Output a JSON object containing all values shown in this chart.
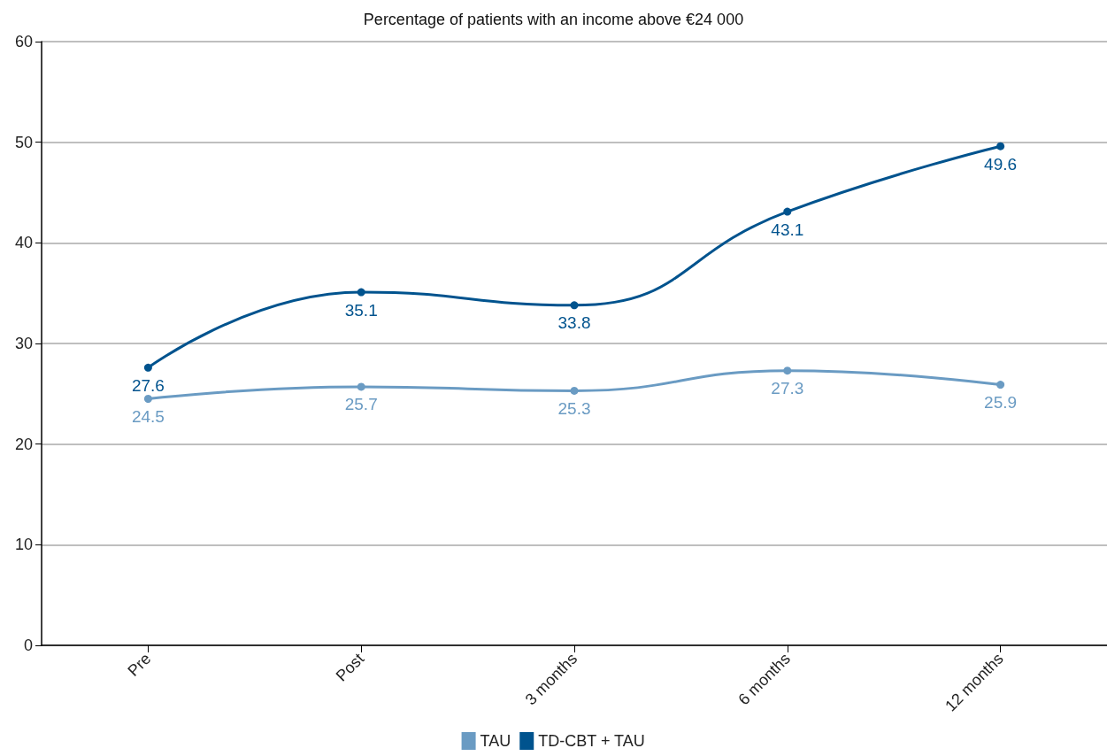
{
  "chart_data": {
    "type": "line",
    "title": "Percentage of patients with an income above €24 000",
    "categories": [
      "Pre",
      "Post",
      "3 months",
      "6 months",
      "12 months"
    ],
    "series": [
      {
        "name": "TAU",
        "color": "#6a9bc3",
        "values": [
          24.5,
          25.7,
          25.3,
          27.3,
          25.9
        ]
      },
      {
        "name": "TD-CBT + TAU",
        "color": "#00538e",
        "values": [
          27.6,
          35.1,
          33.8,
          43.1,
          49.6
        ]
      }
    ],
    "ylim": [
      0,
      60
    ],
    "yticks": [
      0,
      10,
      20,
      30,
      40,
      50,
      60
    ],
    "grid": "y",
    "legend": "bottom",
    "data_labels": true,
    "marker": "circle",
    "line_style": "solid"
  }
}
